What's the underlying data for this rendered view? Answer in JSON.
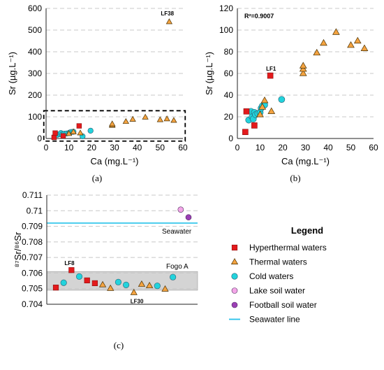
{
  "colors": {
    "hyper": "#e41a1c",
    "thermal": "#f4a340",
    "cold": "#22d3dc",
    "lake": "#f4a6e8",
    "football": "#9b3fb5",
    "seawater_line": "#27c2ea",
    "band": "#d4d4d4"
  },
  "chart_data": [
    {
      "id": "a",
      "type": "scatter",
      "panel_label": "(a)",
      "xlabel": "Ca (mg.L⁻¹)",
      "ylabel": "Sr (µg.L⁻¹)",
      "xlim": [
        0,
        60
      ],
      "ylim": [
        0,
        600
      ],
      "xticks": [
        0,
        10,
        20,
        30,
        40,
        50,
        60
      ],
      "yticks": [
        0,
        100,
        200,
        300,
        400,
        500,
        600
      ],
      "xtick_labels": [
        "0",
        "10",
        "20",
        "30",
        "40",
        "50",
        "60"
      ],
      "ytick_labels": [
        "0",
        "100",
        "200",
        "300",
        "400",
        "500",
        "600"
      ],
      "grid": "horizontal dashed",
      "annotation": "LF38",
      "zoom_box": {
        "x": [
          -1,
          61
        ],
        "y": [
          -12,
          128
        ]
      },
      "series": [
        {
          "type": "hyper",
          "points": [
            [
              3.5,
              5
            ],
            [
              4,
              25
            ],
            [
              7.5,
              12
            ],
            [
              14.5,
              58
            ]
          ]
        },
        {
          "type": "thermal",
          "points": [
            [
              10,
              22
            ],
            [
              12,
              30
            ],
            [
              15,
              25
            ],
            [
              29,
              60
            ],
            [
              29,
              62
            ],
            [
              29,
              67
            ],
            [
              35,
              78
            ],
            [
              38,
              88
            ],
            [
              43.5,
              98
            ],
            [
              50,
              86
            ],
            [
              53,
              90
            ],
            [
              56,
              83
            ],
            [
              54,
              538
            ]
          ]
        },
        {
          "type": "cold",
          "points": [
            [
              5,
              17
            ],
            [
              6,
              20
            ],
            [
              6.5,
              25
            ],
            [
              7,
              18
            ],
            [
              8,
              22
            ],
            [
              9,
              23
            ],
            [
              10,
              25
            ],
            [
              10.5,
              28
            ],
            [
              11,
              30
            ],
            [
              12,
              31
            ],
            [
              16,
              10
            ],
            [
              19.5,
              36
            ]
          ]
        }
      ]
    },
    {
      "id": "b",
      "type": "scatter",
      "panel_label": "(b)",
      "xlabel": "Ca (mg.L⁻¹)",
      "ylabel": "Sr (µg.L⁻¹)",
      "xlim": [
        0,
        60
      ],
      "ylim": [
        0,
        120
      ],
      "xticks": [
        0,
        10,
        20,
        30,
        40,
        50,
        60
      ],
      "yticks": [
        0,
        20,
        40,
        60,
        80,
        100,
        120
      ],
      "xtick_labels": [
        "0",
        "10",
        "20",
        "30",
        "40",
        "50",
        "60"
      ],
      "ytick_labels": [
        "0",
        "20",
        "40",
        "60",
        "80",
        "100",
        "120"
      ],
      "grid": "horizontal dashed",
      "annotation": "LF1",
      "r2": "R²=0.9007",
      "series": [
        {
          "type": "hyper",
          "points": [
            [
              3.5,
              6
            ],
            [
              4,
              25
            ],
            [
              7.5,
              12
            ],
            [
              14.5,
              58
            ]
          ]
        },
        {
          "type": "thermal",
          "points": [
            [
              10,
              22
            ],
            [
              11,
              29
            ],
            [
              12,
              35
            ],
            [
              15,
              25
            ],
            [
              29,
              60
            ],
            [
              29,
              64
            ],
            [
              29,
              67
            ],
            [
              35,
              79
            ],
            [
              38,
              88
            ],
            [
              43.5,
              98
            ],
            [
              50,
              86
            ],
            [
              53,
              90
            ],
            [
              56,
              83
            ]
          ]
        },
        {
          "type": "cold",
          "points": [
            [
              5,
              17
            ],
            [
              6,
              25
            ],
            [
              6.5,
              20
            ],
            [
              7,
              18
            ],
            [
              7.5,
              24
            ],
            [
              8,
              22
            ],
            [
              9,
              23
            ],
            [
              10,
              24
            ],
            [
              10.5,
              28
            ],
            [
              11,
              30
            ],
            [
              12,
              31
            ],
            [
              19.5,
              36
            ]
          ]
        }
      ]
    },
    {
      "id": "c",
      "type": "scatter",
      "panel_label": "(c)",
      "ylabel": "⁸⁷Sr/⁸⁶Sr",
      "ylim": [
        0.704,
        0.711
      ],
      "yticks": [
        0.704,
        0.705,
        0.706,
        0.707,
        0.708,
        0.709,
        0.71,
        0.711
      ],
      "ytick_labels": [
        "0.704",
        "0.705",
        "0.706",
        "0.707",
        "0.708",
        "0.709",
        "0.71",
        "0.711"
      ],
      "grid": "horizontal dashed",
      "seawater_value": 0.70921,
      "seawater_label": "Seawater",
      "band": {
        "min": 0.7049,
        "max": 0.7061,
        "label": "Fogo A"
      },
      "annotations": [
        {
          "text": "LF8",
          "index": 2
        },
        {
          "text": "LF30",
          "index": 11
        }
      ],
      "points": [
        {
          "index": 0,
          "type": "hyper",
          "value": 0.70507
        },
        {
          "index": 1,
          "type": "cold",
          "value": 0.70538
        },
        {
          "index": 2,
          "type": "hyper",
          "value": 0.70619
        },
        {
          "index": 3,
          "type": "cold",
          "value": 0.70578
        },
        {
          "index": 4,
          "type": "hyper",
          "value": 0.70553
        },
        {
          "index": 5,
          "type": "hyper",
          "value": 0.70535
        },
        {
          "index": 6,
          "type": "thermal",
          "value": 0.70525
        },
        {
          "index": 7,
          "type": "thermal",
          "value": 0.70502
        },
        {
          "index": 8,
          "type": "cold",
          "value": 0.70542
        },
        {
          "index": 9,
          "type": "cold",
          "value": 0.70524
        },
        {
          "index": 10,
          "type": "thermal",
          "value": 0.70475
        },
        {
          "index": 11,
          "type": "thermal",
          "value": 0.70528
        },
        {
          "index": 12,
          "type": "thermal",
          "value": 0.70519
        },
        {
          "index": 13,
          "type": "cold",
          "value": 0.70518
        },
        {
          "index": 14,
          "type": "thermal",
          "value": 0.70497
        },
        {
          "index": 15,
          "type": "cold",
          "value": 0.70574
        },
        {
          "index": 16,
          "type": "lake",
          "value": 0.71007
        },
        {
          "index": 17,
          "type": "football",
          "value": 0.70958
        }
      ]
    }
  ],
  "legend": {
    "title": "Legend",
    "items": [
      {
        "type": "hyper",
        "label": "Hyperthermal waters",
        "marker": "square"
      },
      {
        "type": "thermal",
        "label": "Thermal waters",
        "marker": "triangle"
      },
      {
        "type": "cold",
        "label": "Cold waters",
        "marker": "circle"
      },
      {
        "type": "lake",
        "label": "Lake soil water",
        "marker": "circle"
      },
      {
        "type": "football",
        "label": "Football soil water",
        "marker": "circle"
      },
      {
        "type": "seawater_line",
        "label": "Seawater line",
        "marker": "line"
      }
    ]
  }
}
